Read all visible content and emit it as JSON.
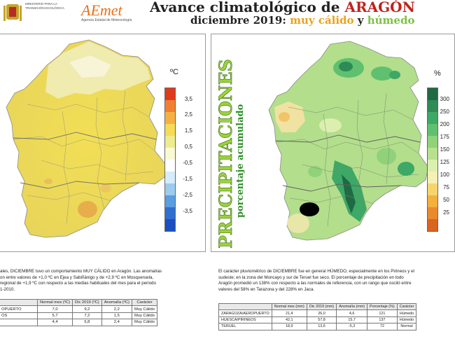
{
  "header": {
    "ministry": "MINISTERIO PARA LA TRANSICIÓN ECOLÓGICA",
    "aemet_logo": "AEmet",
    "aemet_sub": "Agencia Estatal de Meteorología",
    "title_prefix": "Avance climatológico de ",
    "title_region": "ARAGÓN",
    "subtitle_prefix": "diciembre 2019: ",
    "subtitle_hot": "muy cálido",
    "subtitle_and": " y ",
    "subtitle_wet": "húmedo"
  },
  "temp_panel": {
    "unit": "ºC",
    "scale_labels": [
      "3,5",
      "2,5",
      "1,5",
      "0,5",
      "-0,5",
      "-1,5",
      "-2,5",
      "-3,5"
    ],
    "scale_colors": [
      "#e03a1c",
      "#f08030",
      "#f6b042",
      "#f6dc55",
      "#eded90",
      "#fafad2",
      "#ffffff",
      "#d6ecfa",
      "#9ccbf0",
      "#5a9de0",
      "#2f6fd0",
      "#1a4fc0"
    ],
    "text_lines": [
      "ales, DICIEMBRE tuvo un comportamiento MUY CÁLIDO en Aragón. Las anomalías",
      "on entre valores de +1,0 ºC en Ejea y Sabiñánigo y de +2,9 ºC en Mosqueruela,",
      "regional de +1,9 ºC con respecto a las medias habituales del mes para el periodo",
      "1-2010."
    ],
    "table_headers": [
      "Normal mes (ºC)",
      "Dic 2019 (ºC)",
      "Anomalía (ºC)",
      "Carácter"
    ],
    "table_rows": [
      {
        "name": "OPUERTO",
        "normal": "7,0",
        "dic": "9,2",
        "anom": "2,2",
        "car": "Muy Cálido"
      },
      {
        "name": "OS",
        "normal": "5,7",
        "dic": "7,2",
        "anom": "1,5",
        "car": "Muy Cálido"
      },
      {
        "name": "",
        "normal": "4,4",
        "dic": "6,8",
        "anom": "2,4",
        "car": "Muy Cálido"
      }
    ]
  },
  "prec_panel": {
    "vertical_title": "PRECIPITACIONES",
    "vertical_sub": "porcentaje acumulado",
    "unit": "%",
    "scale_labels": [
      "300",
      "250",
      "200",
      "175",
      "150",
      "125",
      "100",
      "75",
      "50",
      "25"
    ],
    "scale_colors": [
      "#1f6a43",
      "#2e8a57",
      "#3ea866",
      "#5fc06f",
      "#8fd27a",
      "#b8e08e",
      "#dcefae",
      "#f5f0b4",
      "#f6d56c",
      "#f3b03d",
      "#e98a2c",
      "#d9651e"
    ],
    "text_lines": [
      "El carácter pluviométrico de DICIEMBRE fue en general HÚMEDO, especialmente en los Pirineos y el",
      "sudeste; en la zona del Moncayo y sur de Teruel fue seco. El porcentaje de precipitación en todo",
      "Aragón promedió un 138% con respecto a las normales de referencia, con un rango que osciló entre",
      "valores del 58% en Tarazona y del 228% en Jaca."
    ],
    "table_headers": [
      "",
      "Normal mes (mm)",
      "Dic 2019 (mm)",
      "Anomalía (mm)",
      "Porcentaje (%)",
      "Carácter"
    ],
    "table_rows": [
      {
        "name": "ZARAGOZA/AEROPUERTO",
        "normal": "21,4",
        "dic": "26,0",
        "anom": "4,6",
        "pct": "121",
        "car": "Húmedo"
      },
      {
        "name": "HUESCA/PIRINEOS",
        "normal": "42,1",
        "dic": "57,8",
        "anom": "15,7",
        "pct": "137",
        "car": "Húmedo"
      },
      {
        "name": "TERUEL",
        "normal": "18,9",
        "dic": "13,6",
        "anom": "-5,3",
        "pct": "72",
        "car": "Normal"
      }
    ]
  }
}
